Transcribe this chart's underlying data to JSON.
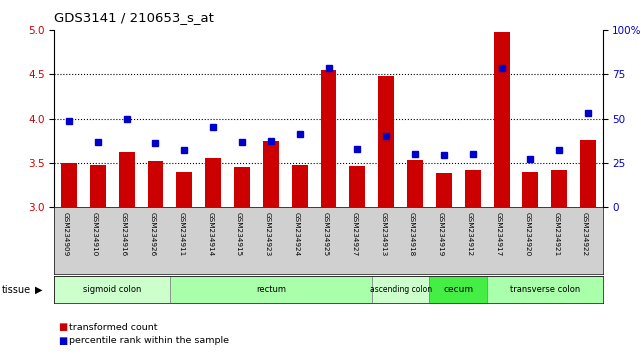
{
  "title": "GDS3141 / 210653_s_at",
  "samples": [
    "GSM234909",
    "GSM234910",
    "GSM234916",
    "GSM234926",
    "GSM234911",
    "GSM234914",
    "GSM234915",
    "GSM234923",
    "GSM234924",
    "GSM234925",
    "GSM234927",
    "GSM234913",
    "GSM234918",
    "GSM234919",
    "GSM234912",
    "GSM234917",
    "GSM234920",
    "GSM234921",
    "GSM234922"
  ],
  "bar_values": [
    3.5,
    3.47,
    3.62,
    3.52,
    3.4,
    3.56,
    3.45,
    3.75,
    3.48,
    4.55,
    3.46,
    4.48,
    3.53,
    3.38,
    3.42,
    4.98,
    3.4,
    3.42,
    3.76
  ],
  "blue_values": [
    3.97,
    3.74,
    4.0,
    3.72,
    3.65,
    3.9,
    3.74,
    3.75,
    3.83,
    4.57,
    3.66,
    3.8,
    3.6,
    3.59,
    3.6,
    4.57,
    3.54,
    3.65,
    4.06
  ],
  "bar_color": "#cc0000",
  "blue_color": "#0000cc",
  "ylim": [
    3.0,
    5.0
  ],
  "yticks_left": [
    3.0,
    3.5,
    4.0,
    4.5,
    5.0
  ],
  "yticks_right": [
    0,
    25,
    50,
    75,
    100
  ],
  "right_ylim": [
    0,
    100
  ],
  "dotted_lines": [
    3.5,
    4.0,
    4.5
  ],
  "tissue_groups": [
    {
      "label": "sigmoid colon",
      "start": 0,
      "end": 4
    },
    {
      "label": "rectum",
      "start": 4,
      "end": 11
    },
    {
      "label": "ascending colon",
      "start": 11,
      "end": 13
    },
    {
      "label": "cecum",
      "start": 13,
      "end": 15
    },
    {
      "label": "transverse colon",
      "start": 15,
      "end": 19
    }
  ],
  "tissue_colors": {
    "sigmoid colon": "#ccffcc",
    "rectum": "#aaffaa",
    "ascending colon": "#ccffcc",
    "cecum": "#44ee44",
    "transverse colon": "#aaffaa"
  },
  "tissue_label": "tissue",
  "legend_red": "transformed count",
  "legend_blue": "percentile rank within the sample",
  "bg_color": "#d0d0d0",
  "plot_bg": "#ffffff"
}
